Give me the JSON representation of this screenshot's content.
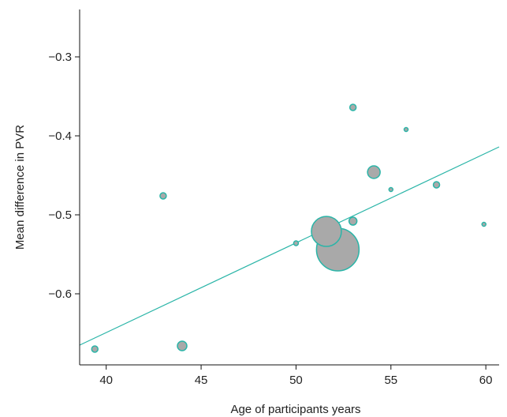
{
  "chart_data": {
    "type": "scatter",
    "title": "",
    "xlabel": "Age of participants years",
    "ylabel": "Mean difference in PVR",
    "xlim": [
      38.6,
      60.7
    ],
    "ylim": [
      -0.69,
      -0.24
    ],
    "xticks": [
      40,
      45,
      50,
      55,
      60
    ],
    "yticks": [
      -0.3,
      -0.4,
      -0.5,
      -0.6
    ],
    "ytick_labels": [
      "−0.3",
      "−0.4",
      "−0.5",
      "−0.6"
    ],
    "grid": false,
    "legend": "none",
    "bubble_fill": "#a9a9a9",
    "bubble_stroke": "#2bb5a8",
    "line_color": "#2bb5a8",
    "points": [
      {
        "x": 39.4,
        "y": -0.67,
        "r": 4
      },
      {
        "x": 43.0,
        "y": -0.476,
        "r": 4
      },
      {
        "x": 44.0,
        "y": -0.666,
        "r": 6
      },
      {
        "x": 50.0,
        "y": -0.536,
        "r": 3
      },
      {
        "x": 51.6,
        "y": -0.521,
        "r": 19
      },
      {
        "x": 52.2,
        "y": -0.544,
        "r": 27
      },
      {
        "x": 53.0,
        "y": -0.364,
        "r": 4
      },
      {
        "x": 53.0,
        "y": -0.508,
        "r": 5
      },
      {
        "x": 54.1,
        "y": -0.446,
        "r": 8
      },
      {
        "x": 55.0,
        "y": -0.468,
        "r": 2.5
      },
      {
        "x": 55.8,
        "y": -0.392,
        "r": 2.5
      },
      {
        "x": 57.4,
        "y": -0.462,
        "r": 4
      },
      {
        "x": 59.9,
        "y": -0.512,
        "r": 2.5
      }
    ],
    "regression_line": {
      "x": [
        38.6,
        60.7
      ],
      "y": [
        -0.665,
        -0.414
      ]
    }
  }
}
